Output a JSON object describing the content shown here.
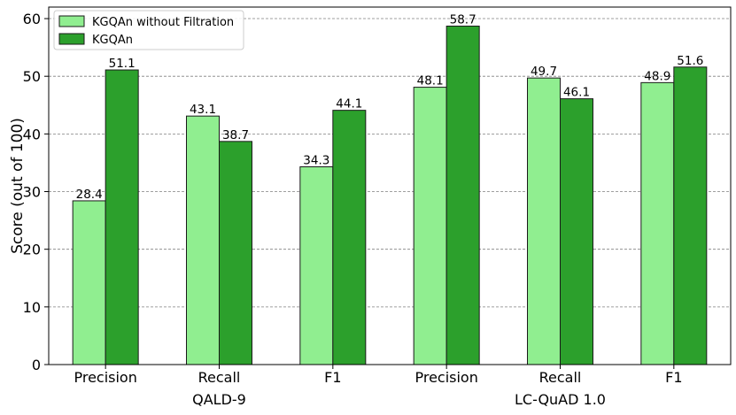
{
  "chart_data": {
    "type": "bar",
    "ylabel": "Score (out of 100)",
    "ylim": [
      0,
      62
    ],
    "yticks": [
      0,
      10,
      20,
      30,
      40,
      50,
      60
    ],
    "grid": "horizontal dashed",
    "legend_position": "top-left",
    "categories": [
      "Precision",
      "Recall",
      "F1",
      "Precision",
      "Recall",
      "F1"
    ],
    "groups": [
      {
        "label": "QALD-9",
        "categories": [
          "Precision",
          "Recall",
          "F1"
        ]
      },
      {
        "label": "LC-QuAD 1.0",
        "categories": [
          "Precision",
          "Recall",
          "F1"
        ]
      }
    ],
    "series": [
      {
        "name": "KGQAn without Filtration",
        "color": "#90ee90",
        "values": [
          28.4,
          43.1,
          34.3,
          48.1,
          49.7,
          48.9
        ],
        "labels": [
          "28.4",
          "43.1",
          "34.3",
          "48.1",
          "49.7",
          "48.9"
        ]
      },
      {
        "name": "KGQAn",
        "color": "#2ca02c",
        "values": [
          51.1,
          38.7,
          44.1,
          58.7,
          46.1,
          51.6
        ],
        "labels": [
          "51.1",
          "38.7",
          "44.1",
          "58.7",
          "46.1",
          "51.6"
        ]
      }
    ]
  }
}
